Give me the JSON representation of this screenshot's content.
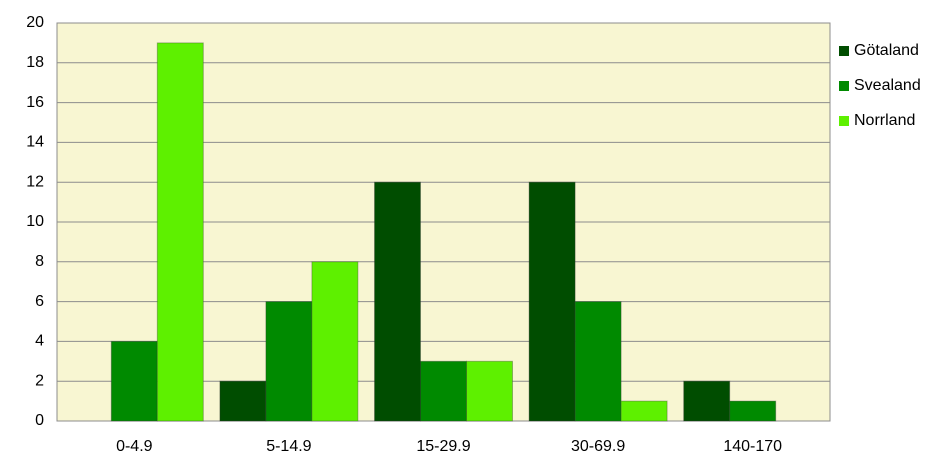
{
  "chart_data": {
    "type": "bar",
    "categories": [
      "0-4.9",
      "5-14.9",
      "15-29.9",
      "30-69.9",
      "140-170"
    ],
    "series": [
      {
        "name": "Götaland",
        "color": "#004d00",
        "values": [
          0,
          2,
          12,
          12,
          2
        ]
      },
      {
        "name": "Svealand",
        "color": "#008a00",
        "values": [
          4,
          6,
          3,
          6,
          1
        ]
      },
      {
        "name": "Norrland",
        "color": "#5ef000",
        "values": [
          19,
          8,
          3,
          1,
          0
        ]
      }
    ],
    "ylim": [
      0,
      20
    ],
    "yticks": [
      0,
      2,
      4,
      6,
      8,
      10,
      12,
      14,
      16,
      18,
      20
    ],
    "grid": true,
    "legend": "right"
  }
}
